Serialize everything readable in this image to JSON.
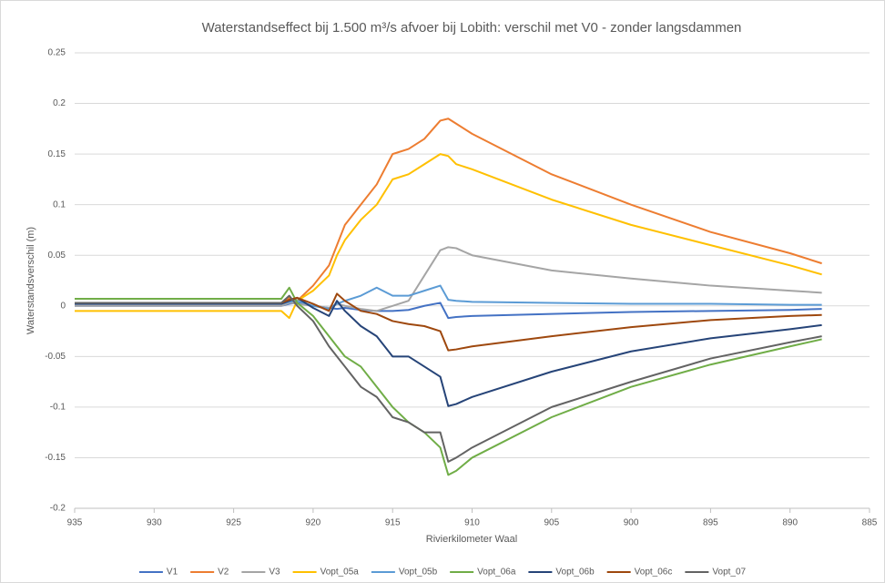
{
  "chart_data": {
    "type": "line",
    "title": "Waterstandseffect bij 1.500 m³/s afvoer bij Lobith: verschil met V0 - zonder langsdammen",
    "x_label": "Rivierkilometer Waal",
    "y_label": "Waterstandsverschil (m)",
    "x": [
      935,
      930,
      925,
      922,
      921.5,
      921,
      920,
      919,
      918.5,
      918,
      917,
      916,
      915,
      914,
      913,
      912,
      911.5,
      911,
      910,
      905,
      900,
      895,
      890,
      888
    ],
    "xlim": [
      935,
      885
    ],
    "xticks": [
      935,
      930,
      925,
      920,
      915,
      910,
      905,
      900,
      895,
      890,
      885
    ],
    "ylim": [
      -0.2,
      0.25
    ],
    "yticks": [
      0.25,
      0.2,
      0.15,
      0.1,
      0.05,
      0,
      -0.05,
      -0.1,
      -0.15,
      -0.2
    ],
    "grid": true,
    "legend": "bottom",
    "series": [
      {
        "name": "V1",
        "color": "#4472c4",
        "values": [
          0,
          0,
          0,
          0,
          0.002,
          0.003,
          0,
          -0.002,
          -0.003,
          -0.002,
          -0.004,
          -0.005,
          -0.005,
          -0.004,
          0,
          0.003,
          -0.012,
          -0.011,
          -0.01,
          -0.008,
          -0.006,
          -0.005,
          -0.004,
          -0.003
        ]
      },
      {
        "name": "V2",
        "color": "#ed7d31",
        "values": [
          0.003,
          0.003,
          0.003,
          0.003,
          0.008,
          0.005,
          0.02,
          0.04,
          0.06,
          0.08,
          0.1,
          0.12,
          0.15,
          0.155,
          0.165,
          0.183,
          0.185,
          0.18,
          0.17,
          0.13,
          0.1,
          0.073,
          0.052,
          0.042
        ]
      },
      {
        "name": "V3",
        "color": "#a5a5a5",
        "values": [
          0,
          0,
          0,
          0,
          0.003,
          0.002,
          0,
          -0.002,
          0.002,
          0,
          -0.003,
          -0.005,
          0,
          0.005,
          0.03,
          0.055,
          0.058,
          0.057,
          0.05,
          0.035,
          0.027,
          0.02,
          0.015,
          0.013
        ]
      },
      {
        "name": "Vopt_05a",
        "color": "#ffc000",
        "values": [
          -0.005,
          -0.005,
          -0.005,
          -0.005,
          -0.012,
          0.005,
          0.015,
          0.03,
          0.05,
          0.065,
          0.085,
          0.1,
          0.125,
          0.13,
          0.14,
          0.15,
          0.148,
          0.14,
          0.135,
          0.105,
          0.08,
          0.06,
          0.04,
          0.031
        ]
      },
      {
        "name": "Vopt_05b",
        "color": "#5b9bd5",
        "values": [
          0.002,
          0.002,
          0.002,
          0.002,
          0.004,
          0.005,
          0,
          -0.003,
          0.002,
          0.005,
          0.01,
          0.018,
          0.01,
          0.01,
          0.015,
          0.02,
          0.006,
          0.005,
          0.004,
          0.003,
          0.002,
          0.002,
          0.001,
          0.001
        ]
      },
      {
        "name": "Vopt_06a",
        "color": "#70ad47",
        "values": [
          0.007,
          0.007,
          0.007,
          0.007,
          0.018,
          0.003,
          -0.01,
          -0.03,
          -0.04,
          -0.05,
          -0.06,
          -0.08,
          -0.1,
          -0.115,
          -0.125,
          -0.14,
          -0.167,
          -0.163,
          -0.15,
          -0.11,
          -0.08,
          -0.058,
          -0.04,
          -0.033
        ]
      },
      {
        "name": "Vopt_06b",
        "color": "#264478",
        "values": [
          0.002,
          0.002,
          0.002,
          0.002,
          0.005,
          0.008,
          -0.002,
          -0.01,
          0.005,
          -0.005,
          -0.02,
          -0.03,
          -0.05,
          -0.05,
          -0.06,
          -0.07,
          -0.099,
          -0.097,
          -0.09,
          -0.065,
          -0.045,
          -0.032,
          -0.023,
          -0.019
        ]
      },
      {
        "name": "Vopt_06c",
        "color": "#9e480e",
        "values": [
          0.003,
          0.003,
          0.003,
          0.003,
          0.006,
          0.008,
          0.002,
          -0.005,
          0.012,
          0.005,
          -0.005,
          -0.008,
          -0.015,
          -0.018,
          -0.02,
          -0.025,
          -0.044,
          -0.043,
          -0.04,
          -0.03,
          -0.021,
          -0.014,
          -0.01,
          -0.009
        ]
      },
      {
        "name": "Vopt_07",
        "color": "#636363",
        "values": [
          0.003,
          0.003,
          0.003,
          0.003,
          0.01,
          0,
          -0.015,
          -0.04,
          -0.05,
          -0.06,
          -0.08,
          -0.09,
          -0.11,
          -0.115,
          -0.125,
          -0.125,
          -0.154,
          -0.15,
          -0.14,
          -0.1,
          -0.075,
          -0.052,
          -0.036,
          -0.03
        ]
      }
    ]
  }
}
